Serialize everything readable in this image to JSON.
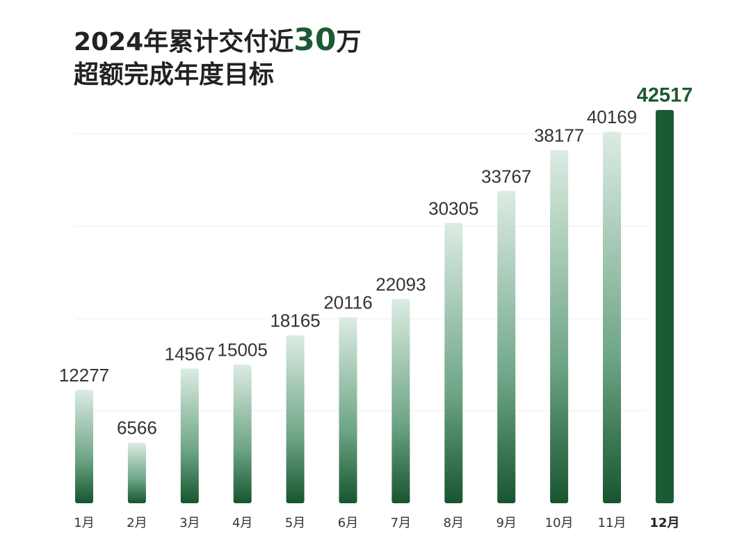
{
  "title": {
    "line1_prefix": "2024年累计交付近",
    "line1_highlight": "30",
    "line1_suffix": "万",
    "line2": "超额完成年度目标"
  },
  "colors": {
    "bar_dark": "#17552f",
    "bar_light": "#dcece3",
    "highlight_bar": "#1b5a35",
    "highlight_text": "#1d5a33",
    "gridline": "#ececec"
  },
  "chart_data": {
    "type": "bar",
    "title": "2024年累计交付近30万 超额完成年度目标",
    "categories": [
      "1月",
      "2月",
      "3月",
      "4月",
      "5月",
      "6月",
      "7月",
      "8月",
      "9月",
      "10月",
      "11月",
      "12月"
    ],
    "values": [
      12277,
      6566,
      14567,
      15005,
      18165,
      20116,
      22093,
      30305,
      33767,
      38177,
      40169,
      42517
    ],
    "highlight_index": 11,
    "ylim": [
      0,
      42517
    ],
    "grid": true,
    "xlabel": "",
    "ylabel": ""
  }
}
